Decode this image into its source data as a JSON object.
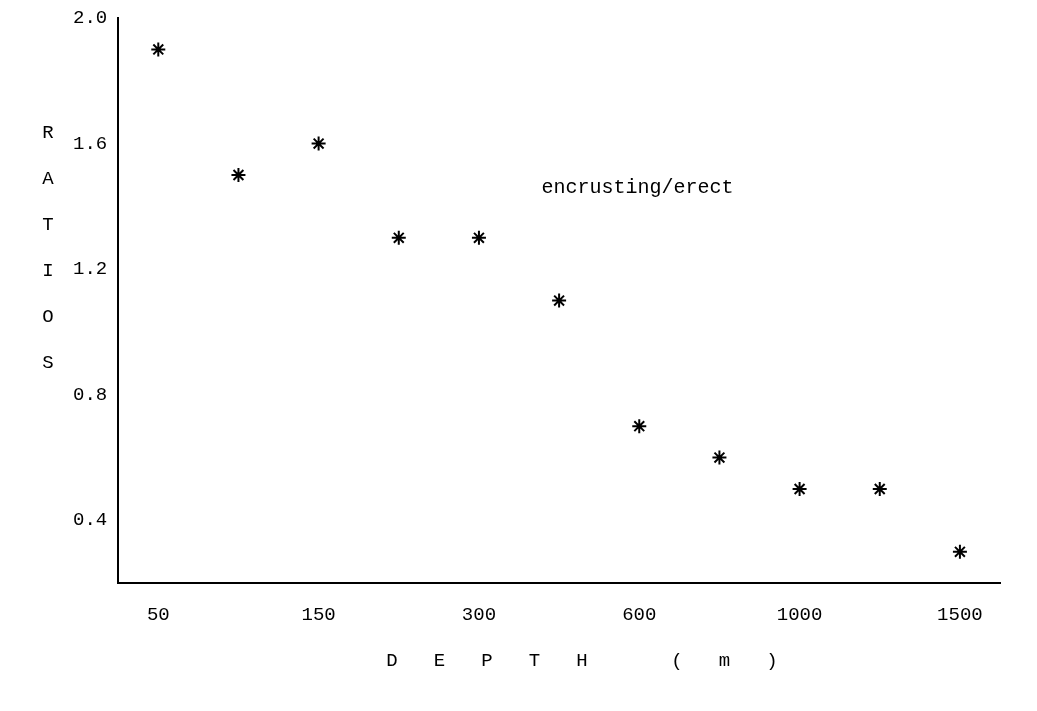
{
  "chart_data": {
    "type": "scatter",
    "xlabel": "DEPTH (m)",
    "ylabel": "RATIOS",
    "categories": [
      "50",
      null,
      "150",
      null,
      "300",
      null,
      "600",
      null,
      "1000",
      null,
      "1500"
    ],
    "values": [
      1.9,
      1.5,
      1.6,
      1.3,
      1.3,
      1.1,
      0.7,
      0.6,
      0.5,
      0.5,
      0.3
    ],
    "color": "#000000",
    "ylim": [
      0.2,
      2.0
    ],
    "yticks": [
      {
        "value": 0.4,
        "label": "0.4"
      },
      {
        "value": 0.8,
        "label": "0.8"
      },
      {
        "value": 1.2,
        "label": "1.2"
      },
      {
        "value": 1.6,
        "label": "1.6"
      },
      {
        "value": 2.0,
        "label": "2.0"
      }
    ],
    "annotations": [
      "encrusting/erect"
    ],
    "grid": false,
    "legend": false,
    "marker": "cross"
  }
}
